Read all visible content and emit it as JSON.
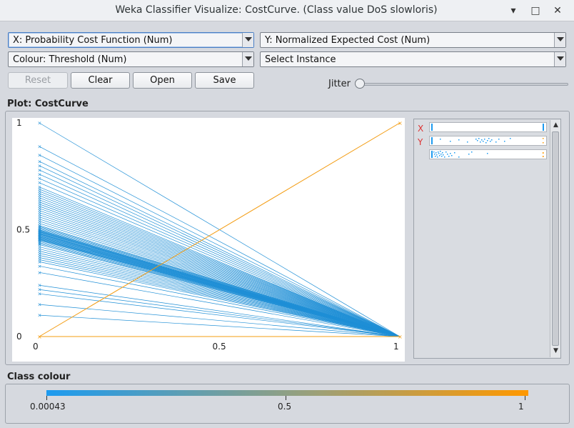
{
  "window": {
    "title": "Weka Classifier Visualize: CostCurve. (Class value DoS slowloris)",
    "minimize_glyph": "▾",
    "maximize_glyph": "□",
    "close_glyph": "✕"
  },
  "controls": {
    "x_axis": "X: Probability Cost Function (Num)",
    "y_axis": "Y: Normalized Expected Cost (Num)",
    "colour": "Colour: Threshold (Num)",
    "instance": "Select Instance",
    "reset_label": "Reset",
    "clear_label": "Clear",
    "open_label": "Open",
    "save_label": "Save",
    "jitter_label": "Jitter",
    "jitter_value": 0
  },
  "plot": {
    "label": "Plot: CostCurve",
    "attribute_labels": {
      "x": "X",
      "y": "Y"
    }
  },
  "legend": {
    "label": "Class colour",
    "min_label": "0.00043",
    "mid_label": "0.5",
    "max_label": "1",
    "colors": {
      "low": "#1d9bf0",
      "high": "#ff9800"
    }
  },
  "chart_data": {
    "type": "line",
    "title": "",
    "xlabel": "",
    "ylabel": "",
    "xlim": [
      0,
      1
    ],
    "ylim": [
      0,
      1
    ],
    "x_ticks": [
      "0",
      "0.5",
      "1"
    ],
    "y_ticks": [
      "0",
      "0.5",
      "1"
    ],
    "series_description_none": "",
    "segments_from_x0_to_x1": [
      1.0,
      0.89,
      0.85,
      0.82,
      0.8,
      0.78,
      0.76,
      0.74,
      0.72,
      0.7,
      0.69,
      0.68,
      0.67,
      0.66,
      0.65,
      0.64,
      0.63,
      0.62,
      0.61,
      0.6,
      0.59,
      0.58,
      0.57,
      0.56,
      0.55,
      0.54,
      0.53,
      0.52,
      0.515,
      0.51,
      0.505,
      0.5,
      0.498,
      0.495,
      0.492,
      0.49,
      0.488,
      0.485,
      0.482,
      0.48,
      0.478,
      0.475,
      0.472,
      0.47,
      0.467,
      0.465,
      0.462,
      0.46,
      0.457,
      0.455,
      0.452,
      0.45,
      0.445,
      0.44,
      0.435,
      0.43,
      0.42,
      0.41,
      0.4,
      0.39,
      0.38,
      0.37,
      0.36,
      0.35,
      0.33,
      0.3,
      0.24,
      0.22,
      0.2,
      0.15,
      0.1
    ],
    "diagonal_series": {
      "x": [
        0,
        1
      ],
      "y": [
        0,
        1
      ],
      "color": "#f39c12"
    },
    "baseline_series": {
      "x": [
        0,
        1
      ],
      "y": [
        0,
        0
      ],
      "color": "#f39c12"
    },
    "segment_color": "#1f8fd6"
  }
}
